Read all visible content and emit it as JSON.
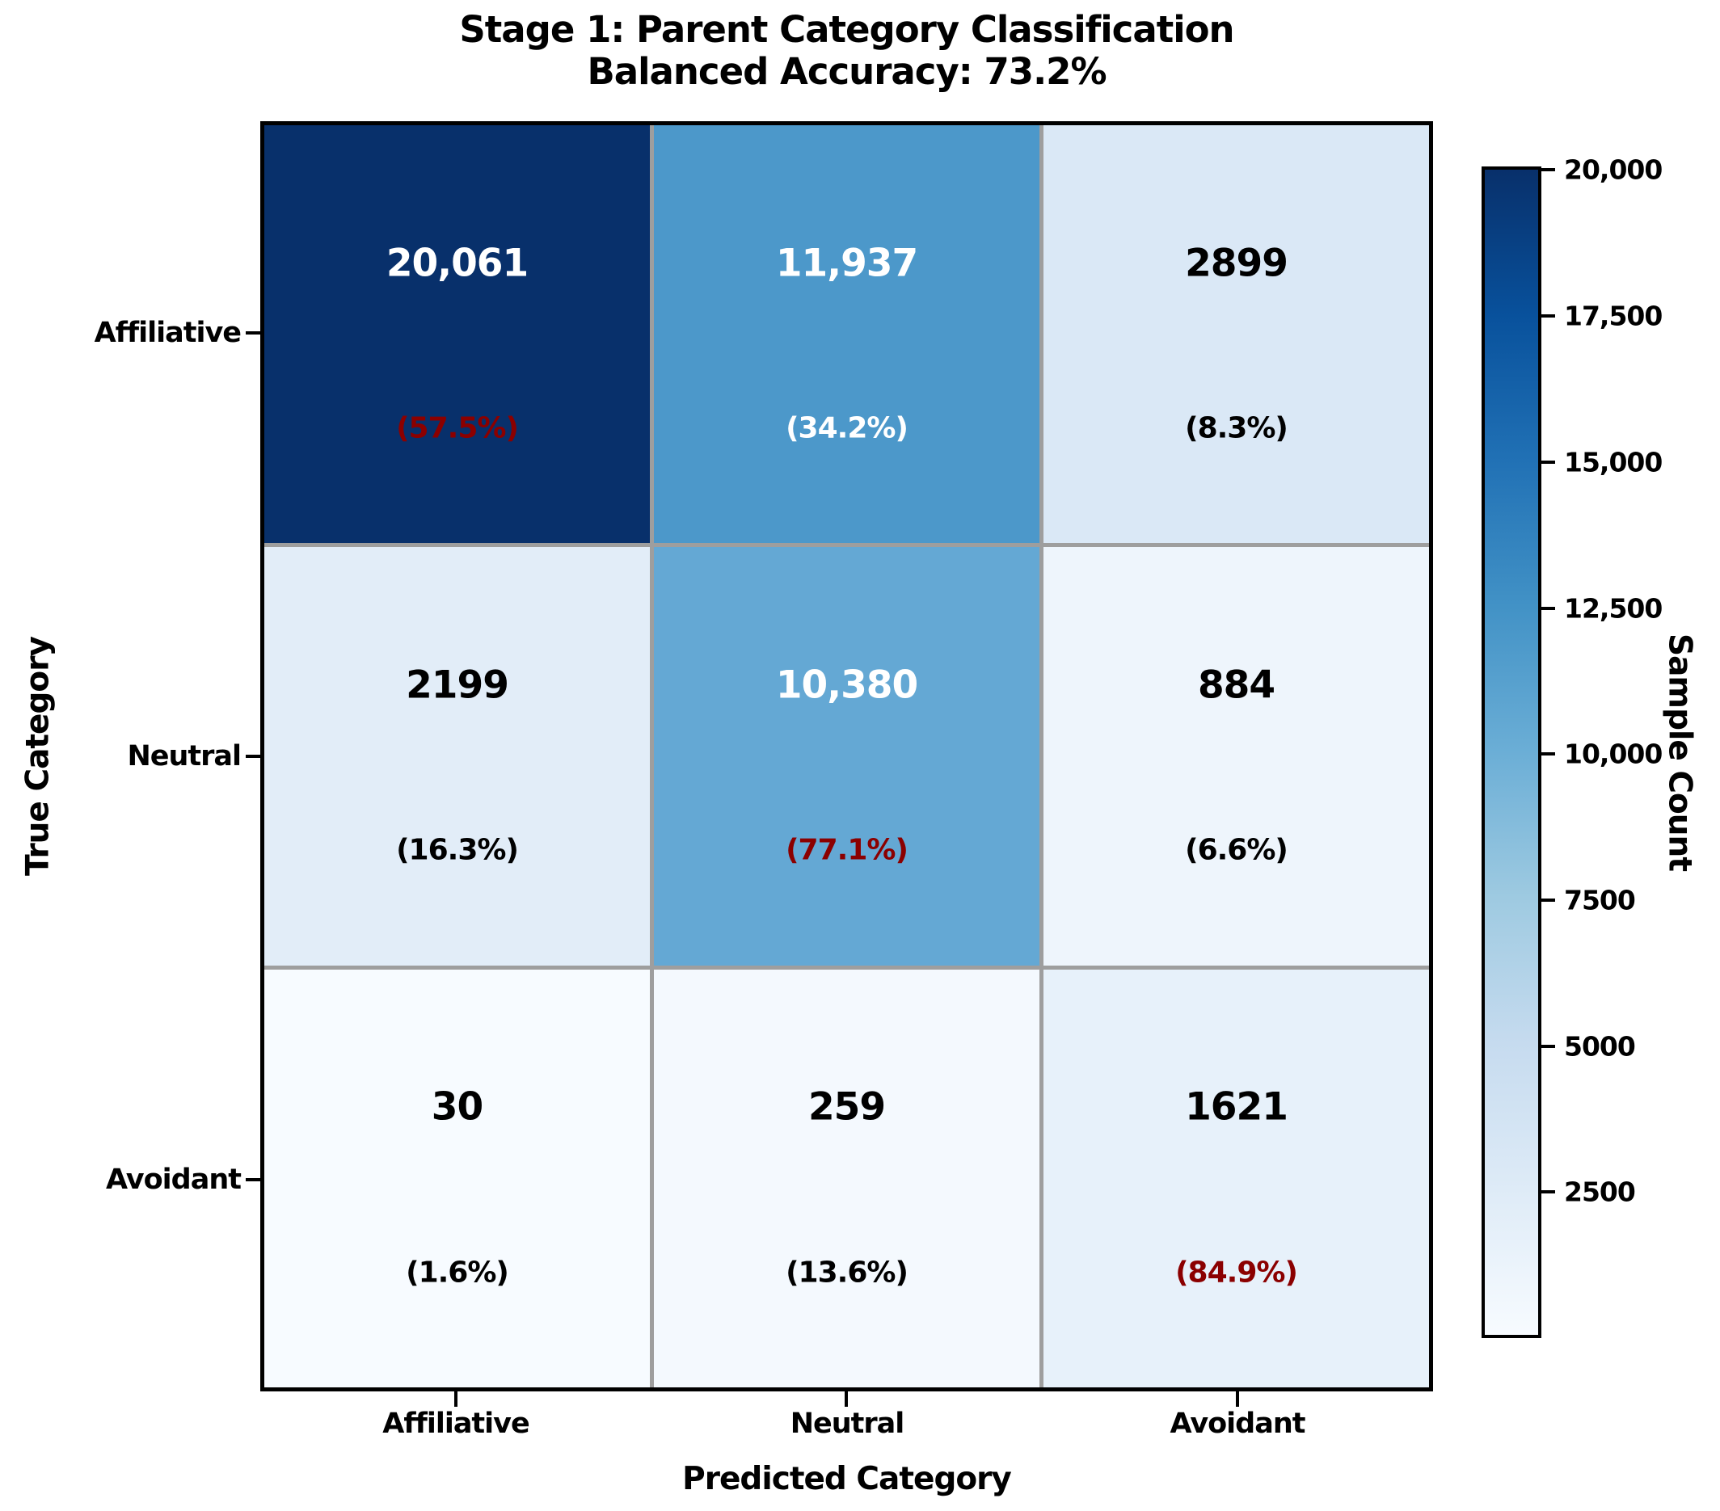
{
  "chart_data": {
    "type": "heatmap",
    "title": "Stage 1: Parent Category Classification",
    "subtitle": "Balanced Accuracy: 73.2%",
    "xlabel": "Predicted Category",
    "ylabel": "True Category",
    "x_categories": [
      "Affiliative",
      "Neutral",
      "Avoidant"
    ],
    "y_categories": [
      "Affiliative",
      "Neutral",
      "Avoidant"
    ],
    "values": [
      [
        20061,
        11937,
        2899
      ],
      [
        2199,
        10380,
        884
      ],
      [
        30,
        259,
        1621
      ]
    ],
    "row_percents": [
      [
        57.5,
        34.2,
        8.3
      ],
      [
        16.3,
        77.1,
        6.6
      ],
      [
        1.6,
        13.6,
        84.9
      ]
    ],
    "grid_on": true,
    "legend_position": "right-colorbar",
    "cells": [
      [
        {
          "count": "20,061",
          "pct": "(57.5%)",
          "bg": "#08306b",
          "count_color": "#ffffff",
          "pct_color": "#8b0000"
        },
        {
          "count": "11,937",
          "pct": "(34.2%)",
          "bg": "#4c98ca",
          "count_color": "#ffffff",
          "pct_color": "#ffffff"
        },
        {
          "count": "2899",
          "pct": "(8.3%)",
          "bg": "#dae8f6",
          "count_color": "#000000",
          "pct_color": "#000000"
        }
      ],
      [
        {
          "count": "2199",
          "pct": "(16.3%)",
          "bg": "#e2edf8",
          "count_color": "#000000",
          "pct_color": "#000000"
        },
        {
          "count": "10,380",
          "pct": "(77.1%)",
          "bg": "#64a8d4",
          "count_color": "#ffffff",
          "pct_color": "#8b0000"
        },
        {
          "count": "884",
          "pct": "(6.6%)",
          "bg": "#eef5fc",
          "count_color": "#000000",
          "pct_color": "#000000"
        }
      ],
      [
        {
          "count": "30",
          "pct": "(1.6%)",
          "bg": "#f7fbff",
          "count_color": "#000000",
          "pct_color": "#000000"
        },
        {
          "count": "259",
          "pct": "(13.6%)",
          "bg": "#f4f9fe",
          "count_color": "#000000",
          "pct_color": "#000000"
        },
        {
          "count": "1621",
          "pct": "(84.9%)",
          "bg": "#e7f1fa",
          "count_color": "#000000",
          "pct_color": "#8b0000"
        }
      ]
    ],
    "colorbar": {
      "label": "Sample Count",
      "vmin": 0,
      "vmax": 20061,
      "ticks": [
        {
          "value": 20000,
          "label": "20,000"
        },
        {
          "value": 17500,
          "label": "17,500"
        },
        {
          "value": 15000,
          "label": "15,000"
        },
        {
          "value": 12500,
          "label": "12,500"
        },
        {
          "value": 10000,
          "label": "10,000"
        },
        {
          "value": 7500,
          "label": "7500"
        },
        {
          "value": 5000,
          "label": "5000"
        },
        {
          "value": 2500,
          "label": "2500"
        }
      ],
      "gradient": [
        "#08306b 0%",
        "#08519c 12.5%",
        "#2171b5 25%",
        "#4292c6 37.5%",
        "#6baed6 50%",
        "#9ecae1 62.5%",
        "#c6dbef 75%",
        "#deebf7 87.5%",
        "#f7fbff 100%"
      ]
    },
    "colors": {
      "diagonal_percent_text": "#8b0000",
      "grid_line": "#9e9e9e",
      "plot_border": "#000000",
      "background": "#ffffff"
    }
  }
}
